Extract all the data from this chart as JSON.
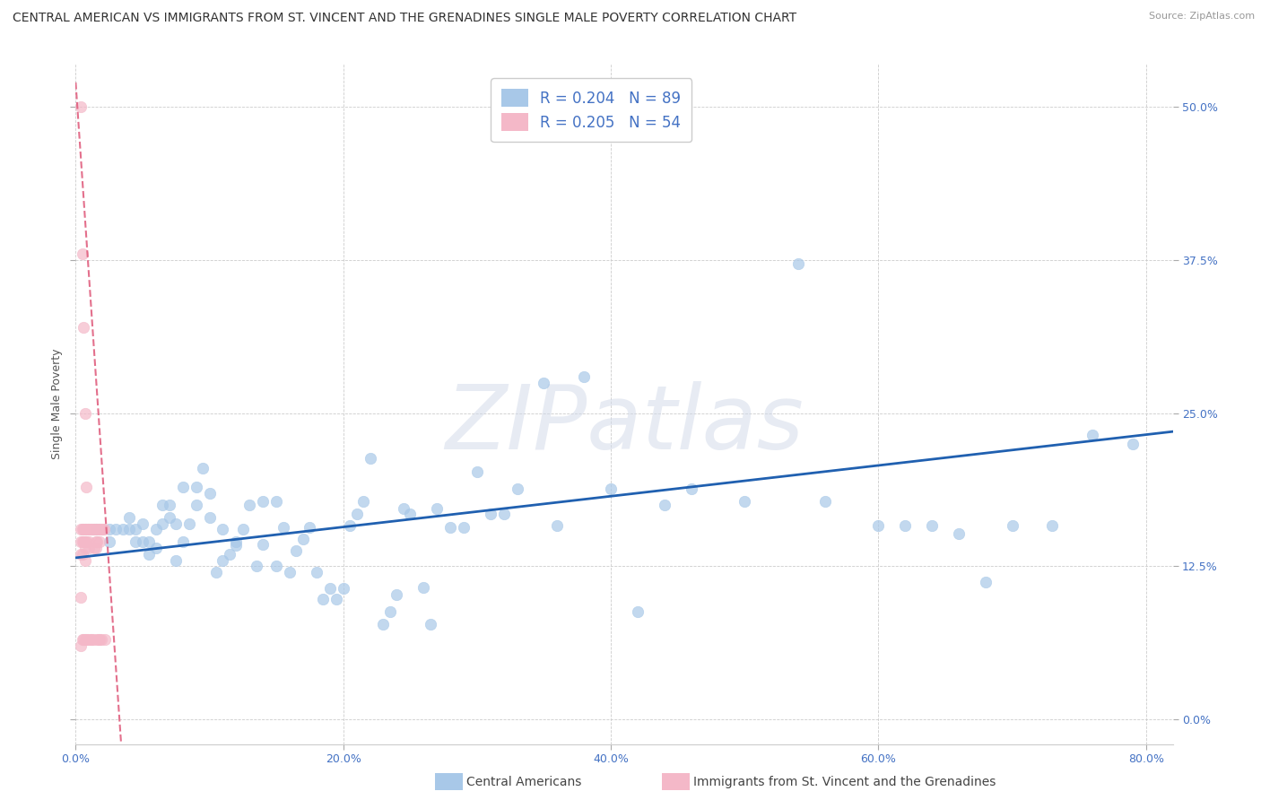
{
  "title": "CENTRAL AMERICAN VS IMMIGRANTS FROM ST. VINCENT AND THE GRENADINES SINGLE MALE POVERTY CORRELATION CHART",
  "source": "Source: ZipAtlas.com",
  "ylabel": "Single Male Poverty",
  "yticks": [
    "0.0%",
    "12.5%",
    "25.0%",
    "37.5%",
    "50.0%"
  ],
  "ytick_vals": [
    0.0,
    0.125,
    0.25,
    0.375,
    0.5
  ],
  "xtick_vals": [
    0.0,
    0.2,
    0.4,
    0.6,
    0.8
  ],
  "xtick_labels": [
    "0.0%",
    "20.0%",
    "40.0%",
    "60.0%",
    "80.0%"
  ],
  "xmin": 0.0,
  "xmax": 0.82,
  "ymin": -0.02,
  "ymax": 0.535,
  "legend_blue_label": "R = 0.204   N = 89",
  "legend_pink_label": "R = 0.205   N = 54",
  "blue_color": "#a8c8e8",
  "pink_color": "#f4b8c8",
  "trendline_blue_color": "#2060b0",
  "trendline_pink_color": "#e06080",
  "blue_trendline_x0": 0.0,
  "blue_trendline_x1": 0.82,
  "blue_trendline_y0": 0.132,
  "blue_trendline_y1": 0.235,
  "pink_trendline_x0": 0.0,
  "pink_trendline_x1": 0.034,
  "pink_trendline_y0": 0.52,
  "pink_trendline_y1": -0.02,
  "blue_scatter_x": [
    0.015,
    0.025,
    0.025,
    0.03,
    0.035,
    0.04,
    0.04,
    0.045,
    0.045,
    0.05,
    0.05,
    0.055,
    0.055,
    0.06,
    0.06,
    0.065,
    0.065,
    0.07,
    0.07,
    0.075,
    0.075,
    0.08,
    0.08,
    0.085,
    0.09,
    0.09,
    0.095,
    0.1,
    0.1,
    0.105,
    0.11,
    0.11,
    0.115,
    0.12,
    0.12,
    0.125,
    0.13,
    0.135,
    0.14,
    0.14,
    0.15,
    0.15,
    0.155,
    0.16,
    0.165,
    0.17,
    0.175,
    0.18,
    0.185,
    0.19,
    0.195,
    0.2,
    0.205,
    0.21,
    0.215,
    0.22,
    0.23,
    0.235,
    0.24,
    0.245,
    0.25,
    0.26,
    0.265,
    0.27,
    0.28,
    0.29,
    0.3,
    0.31,
    0.32,
    0.33,
    0.35,
    0.36,
    0.38,
    0.4,
    0.42,
    0.44,
    0.46,
    0.5,
    0.54,
    0.56,
    0.6,
    0.62,
    0.64,
    0.66,
    0.68,
    0.7,
    0.73,
    0.76,
    0.79
  ],
  "blue_scatter_y": [
    0.155,
    0.155,
    0.145,
    0.155,
    0.155,
    0.155,
    0.165,
    0.145,
    0.155,
    0.145,
    0.16,
    0.135,
    0.145,
    0.14,
    0.155,
    0.16,
    0.175,
    0.165,
    0.175,
    0.13,
    0.16,
    0.19,
    0.145,
    0.16,
    0.175,
    0.19,
    0.205,
    0.165,
    0.185,
    0.12,
    0.13,
    0.155,
    0.135,
    0.145,
    0.142,
    0.155,
    0.175,
    0.125,
    0.178,
    0.143,
    0.178,
    0.125,
    0.157,
    0.12,
    0.138,
    0.147,
    0.157,
    0.12,
    0.098,
    0.107,
    0.098,
    0.107,
    0.158,
    0.168,
    0.178,
    0.213,
    0.078,
    0.088,
    0.102,
    0.172,
    0.168,
    0.108,
    0.078,
    0.172,
    0.157,
    0.157,
    0.202,
    0.168,
    0.168,
    0.188,
    0.275,
    0.158,
    0.28,
    0.188,
    0.088,
    0.175,
    0.188,
    0.178,
    0.372,
    0.178,
    0.158,
    0.158,
    0.158,
    0.152,
    0.112,
    0.158,
    0.158,
    0.232,
    0.225
  ],
  "pink_scatter_x": [
    0.004,
    0.004,
    0.004,
    0.004,
    0.004,
    0.004,
    0.005,
    0.005,
    0.005,
    0.005,
    0.005,
    0.006,
    0.006,
    0.006,
    0.006,
    0.007,
    0.007,
    0.007,
    0.007,
    0.007,
    0.007,
    0.008,
    0.008,
    0.008,
    0.008,
    0.009,
    0.009,
    0.01,
    0.01,
    0.01,
    0.011,
    0.011,
    0.012,
    0.012,
    0.013,
    0.013,
    0.014,
    0.014,
    0.015,
    0.015,
    0.015,
    0.016,
    0.016,
    0.016,
    0.017,
    0.017,
    0.018,
    0.018,
    0.018,
    0.019,
    0.019,
    0.02,
    0.021,
    0.022
  ],
  "pink_scatter_y": [
    0.5,
    0.155,
    0.145,
    0.135,
    0.1,
    0.06,
    0.38,
    0.155,
    0.145,
    0.135,
    0.065,
    0.32,
    0.155,
    0.145,
    0.065,
    0.25,
    0.155,
    0.145,
    0.14,
    0.13,
    0.065,
    0.19,
    0.155,
    0.145,
    0.065,
    0.155,
    0.065,
    0.155,
    0.145,
    0.14,
    0.155,
    0.065,
    0.155,
    0.065,
    0.155,
    0.065,
    0.155,
    0.14,
    0.155,
    0.145,
    0.14,
    0.155,
    0.145,
    0.065,
    0.155,
    0.065,
    0.155,
    0.145,
    0.065,
    0.155,
    0.065,
    0.155,
    0.155,
    0.065
  ],
  "watermark_text": "ZIPatlas",
  "title_fontsize": 10,
  "axis_label_fontsize": 9,
  "tick_fontsize": 9,
  "source_fontsize": 8,
  "legend_fontsize": 12,
  "ytick_color": "#4472c4",
  "xtick_color": "#4472c4",
  "bottom_legend_blue": "Central Americans",
  "bottom_legend_pink": "Immigrants from St. Vincent and the Grenadines"
}
